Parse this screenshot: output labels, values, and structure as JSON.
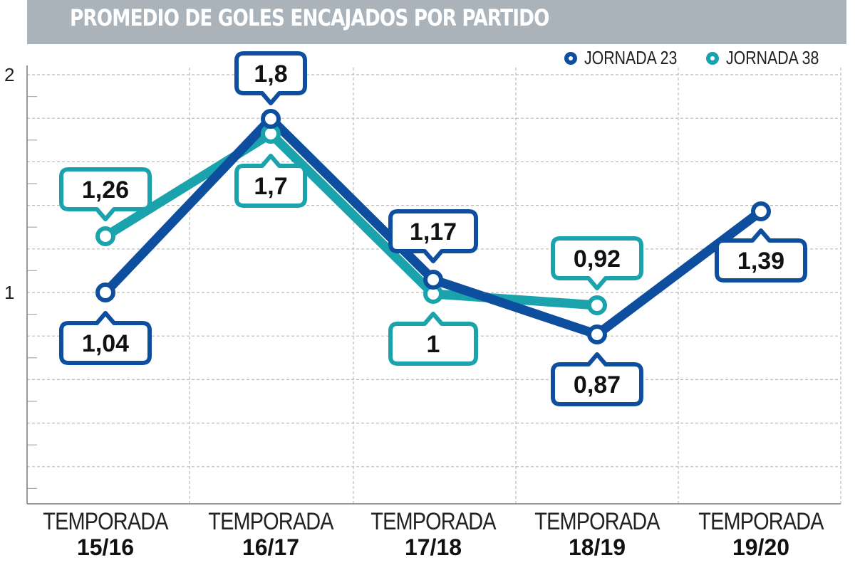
{
  "title": "PROMEDIO DE GOLES ENCAJADOS POR PARTIDO",
  "legend": [
    {
      "label": "JORNADA 23",
      "color": "#0d4f9e"
    },
    {
      "label": "JORNADA 38",
      "color": "#1aa3ad"
    }
  ],
  "y_axis": {
    "ticks": [
      "2",
      "1"
    ]
  },
  "x_axis": {
    "prefix": "TEMPORADA",
    "seasons": [
      "15/16",
      "16/17",
      "17/18",
      "18/19",
      "19/20"
    ]
  },
  "chart_data": {
    "type": "line",
    "title": "PROMEDIO DE GOLES ENCAJADOS POR PARTIDO",
    "categories": [
      "Temporada 15/16",
      "Temporada 16/17",
      "Temporada 17/18",
      "Temporada 18/19",
      "Temporada 19/20"
    ],
    "series": [
      {
        "name": "JORNADA 23",
        "color": "#0d4f9e",
        "values": [
          1.04,
          1.8,
          1.17,
          0.87,
          1.39
        ],
        "labels": [
          "1,04",
          "1,8",
          "1,17",
          "0,87",
          "1,39"
        ]
      },
      {
        "name": "JORNADA 38",
        "color": "#1aa3ad",
        "values": [
          1.26,
          1.7,
          1,
          0.92,
          null
        ],
        "labels": [
          "1,26",
          "1,7",
          "1",
          "0,92",
          ""
        ]
      }
    ],
    "xlabel": "",
    "ylabel": "",
    "ylim": [
      0,
      2
    ],
    "yticks": [
      1,
      2
    ],
    "grid": true,
    "legend_position": "top-right"
  }
}
